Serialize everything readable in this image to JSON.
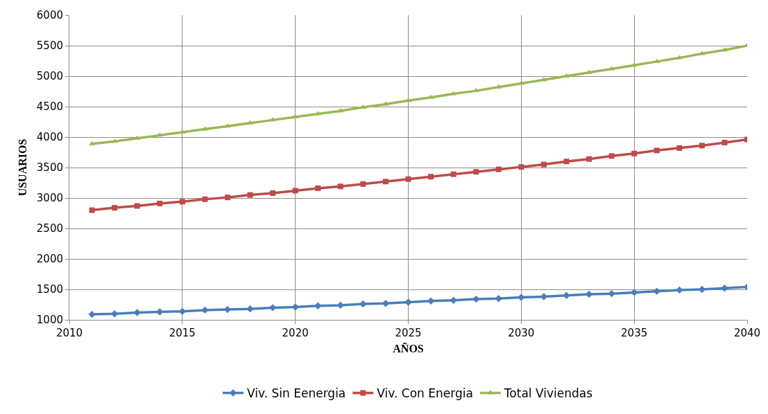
{
  "chart_data": {
    "type": "line",
    "xlabel": "AÑOS",
    "ylabel": "USUARIOS",
    "x": [
      2011,
      2012,
      2013,
      2014,
      2015,
      2016,
      2017,
      2018,
      2019,
      2020,
      2021,
      2022,
      2023,
      2024,
      2025,
      2026,
      2027,
      2028,
      2029,
      2030,
      2031,
      2032,
      2033,
      2034,
      2035,
      2036,
      2037,
      2038,
      2039,
      2040
    ],
    "series": [
      {
        "name": "Viv. Sin Eenergia",
        "color": "#4a7ebb",
        "marker": "diamond",
        "values": [
          1090,
          1100,
          1120,
          1130,
          1140,
          1160,
          1170,
          1180,
          1200,
          1210,
          1230,
          1240,
          1260,
          1270,
          1290,
          1310,
          1320,
          1340,
          1350,
          1370,
          1380,
          1400,
          1420,
          1430,
          1450,
          1470,
          1490,
          1500,
          1520,
          1540
        ]
      },
      {
        "name": "Viv. Con Energia",
        "color": "#be4b48",
        "marker": "square",
        "values": [
          2800,
          2840,
          2870,
          2910,
          2940,
          2980,
          3010,
          3050,
          3080,
          3120,
          3160,
          3190,
          3230,
          3270,
          3310,
          3350,
          3390,
          3430,
          3470,
          3510,
          3550,
          3600,
          3640,
          3690,
          3730,
          3780,
          3820,
          3860,
          3910,
          3960
        ]
      },
      {
        "name": "Total Viviendas",
        "color": "#98b954",
        "marker": "triangle",
        "values": [
          3890,
          3930,
          3980,
          4030,
          4080,
          4130,
          4180,
          4230,
          4280,
          4330,
          4380,
          4430,
          4490,
          4540,
          4600,
          4650,
          4710,
          4760,
          4820,
          4880,
          4940,
          5000,
          5060,
          5120,
          5180,
          5240,
          5300,
          5370,
          5430,
          5500
        ]
      }
    ],
    "xlim": [
      2010,
      2040
    ],
    "xticks": [
      2010,
      2015,
      2020,
      2025,
      2030,
      2035,
      2040
    ],
    "ylim": [
      1000,
      6000
    ],
    "yticks": [
      1000,
      1500,
      2000,
      2500,
      3000,
      3500,
      4000,
      4500,
      5000,
      5500,
      6000
    ],
    "grid": true,
    "legend": "bottom",
    "line_style": "solid"
  }
}
